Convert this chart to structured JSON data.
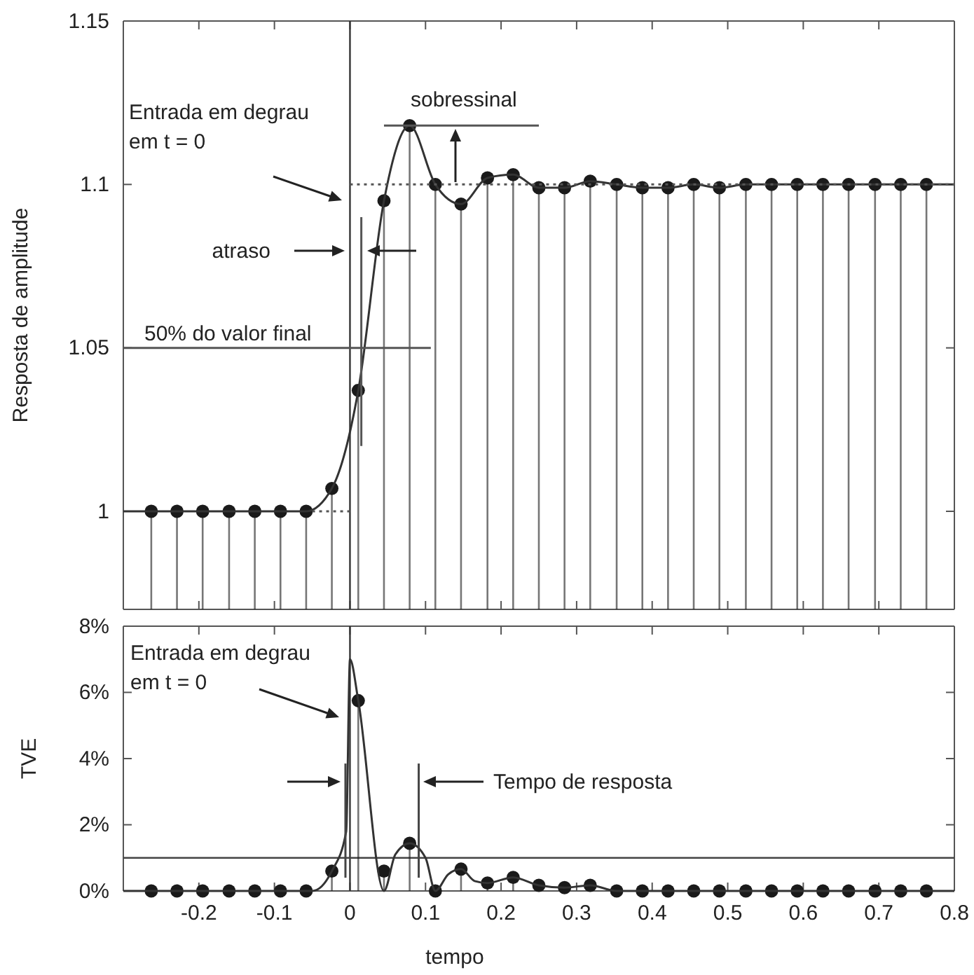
{
  "chart_data": [
    {
      "type": "lollipop",
      "ylabel": "Resposta de amplitude",
      "xlim": [
        -0.3,
        0.8
      ],
      "ylim": [
        0.97,
        1.15
      ],
      "xticks": [
        -0.2,
        -0.1,
        0,
        0.1,
        0.2,
        0.3,
        0.4,
        0.5,
        0.6,
        0.7,
        0.8
      ],
      "yticks": [
        1,
        1.05,
        1.1,
        1.15
      ],
      "tick_labels": "y",
      "series": [
        {
          "marker": "circle",
          "color": "#1a1a1a",
          "x": [
            -0.263,
            -0.229,
            -0.195,
            -0.16,
            -0.126,
            -0.092,
            -0.058,
            -0.024,
            0.011,
            0.045,
            0.079,
            0.113,
            0.147,
            0.182,
            0.216,
            0.25,
            0.284,
            0.318,
            0.353,
            0.387,
            0.421,
            0.455,
            0.489,
            0.524,
            0.558,
            0.592,
            0.626,
            0.66,
            0.695,
            0.729,
            0.763
          ],
          "values": [
            1,
            1,
            1,
            1,
            1,
            1,
            1,
            1.007,
            1.037,
            1.095,
            1.118,
            1.1,
            1.094,
            1.102,
            1.103,
            1.099,
            1.099,
            1.101,
            1.1,
            1.099,
            1.099,
            1.1,
            1.099,
            1.1,
            1.1,
            1.1,
            1.1,
            1.1,
            1.1,
            1.1,
            1.1
          ]
        },
        {
          "type": "line",
          "color": "#333333",
          "x": [
            -0.3,
            -0.263,
            -0.229,
            -0.195,
            -0.16,
            -0.126,
            -0.092,
            -0.058,
            -0.024,
            0.011,
            0.045,
            0.079,
            0.113,
            0.147,
            0.182,
            0.216,
            0.25,
            0.284,
            0.318,
            0.353,
            0.387,
            0.421,
            0.455,
            0.489,
            0.524,
            0.558,
            0.592,
            0.626,
            0.66,
            0.695,
            0.729,
            0.763,
            0.8
          ],
          "values": [
            1,
            1,
            1,
            1,
            1,
            1,
            1,
            1,
            1.007,
            1.037,
            1.095,
            1.118,
            1.1,
            1.094,
            1.102,
            1.103,
            1.099,
            1.099,
            1.101,
            1.1,
            1.099,
            1.099,
            1.1,
            1.099,
            1.1,
            1.1,
            1.1,
            1.1,
            1.1,
            1.1,
            1.1,
            1.1,
            1.1
          ]
        },
        {
          "type": "line",
          "color": "#555555",
          "line_style": "dotted",
          "x": [
            -0.05,
            0
          ],
          "values": [
            1,
            1
          ]
        },
        {
          "type": "line",
          "color": "#555555",
          "line_style": "dotted",
          "x": [
            0,
            0.8
          ],
          "values": [
            1.1,
            1.1
          ]
        },
        {
          "type": "line",
          "color": "#555555",
          "x": [
            -0.3,
            0.107
          ],
          "values": [
            1.05,
            1.05
          ]
        },
        {
          "type": "line",
          "color": "#555555",
          "x": [
            0.045,
            0.25
          ],
          "values": [
            1.118,
            1.118
          ]
        },
        {
          "type": "line",
          "color": "#555555",
          "x": [
            0.015,
            0.015
          ],
          "values": [
            1.02,
            1.09
          ]
        }
      ],
      "ref_lines": [
        {
          "axis": "x",
          "value": 0,
          "color": "#333333"
        }
      ],
      "annotations": [
        "Entrada em degrau em t = 0",
        "sobressinal",
        "atraso",
        "50% do valor final"
      ]
    },
    {
      "type": "lollipop",
      "ylabel": "TVE",
      "xlabel": "tempo",
      "xlim": [
        -0.3,
        0.8
      ],
      "ylim": [
        0,
        8
      ],
      "xticks": [
        -0.2,
        -0.1,
        0,
        0.1,
        0.2,
        0.3,
        0.4,
        0.5,
        0.6,
        0.7,
        0.8
      ],
      "yticks": [
        {
          "value": 0,
          "label": "0%"
        },
        {
          "value": 2,
          "label": "2%"
        },
        {
          "value": 4,
          "label": "4%"
        },
        {
          "value": 6,
          "label": "6%"
        },
        {
          "value": 8,
          "label": "8%"
        }
      ],
      "series": [
        {
          "marker": "circle",
          "color": "#1a1a1a",
          "x": [
            -0.263,
            -0.229,
            -0.195,
            -0.16,
            -0.126,
            -0.092,
            -0.058,
            -0.024,
            0.011,
            0.045,
            0.079,
            0.113,
            0.147,
            0.182,
            0.216,
            0.25,
            0.284,
            0.318,
            0.353,
            0.387,
            0.421,
            0.455,
            0.489,
            0.524,
            0.558,
            0.592,
            0.626,
            0.66,
            0.695,
            0.729,
            0.763
          ],
          "values": [
            0,
            0,
            0,
            0,
            0,
            0,
            0,
            0.6,
            5.75,
            0.6,
            1.44,
            0,
            0.66,
            0.24,
            0.41,
            0.17,
            0.1,
            0.17,
            0,
            0,
            0,
            0,
            0,
            0,
            0,
            0,
            0,
            0,
            0,
            0,
            0
          ]
        },
        {
          "type": "line",
          "color": "#333333",
          "x": [
            -0.3,
            -0.05,
            -0.024,
            -0.005,
            0,
            0.011,
            0.045,
            0.06,
            0.079,
            0.1,
            0.113,
            0.13,
            0.147,
            0.165,
            0.182,
            0.216,
            0.25,
            0.284,
            0.318,
            0.353,
            0.8
          ],
          "values": [
            0,
            0,
            0.6,
            1.8,
            7,
            5.75,
            0,
            1.1,
            1.44,
            1,
            0,
            0.5,
            0.66,
            0.3,
            0.24,
            0.41,
            0.17,
            0.1,
            0.17,
            0,
            0
          ]
        },
        {
          "type": "line",
          "color": "#444444",
          "x": [
            -0.006,
            -0.006
          ],
          "values": [
            3.85,
            0.4
          ]
        },
        {
          "type": "line",
          "color": "#444444",
          "x": [
            0.091,
            0.091
          ],
          "values": [
            3.85,
            0.4
          ]
        }
      ],
      "ref_lines": [
        {
          "axis": "x",
          "value": 0,
          "color": "#333333"
        },
        {
          "axis": "y",
          "value": 1,
          "color": "#444444"
        }
      ],
      "annotations": [
        "Entrada em degrau em t = 0",
        "Tempo de resposta"
      ]
    }
  ]
}
